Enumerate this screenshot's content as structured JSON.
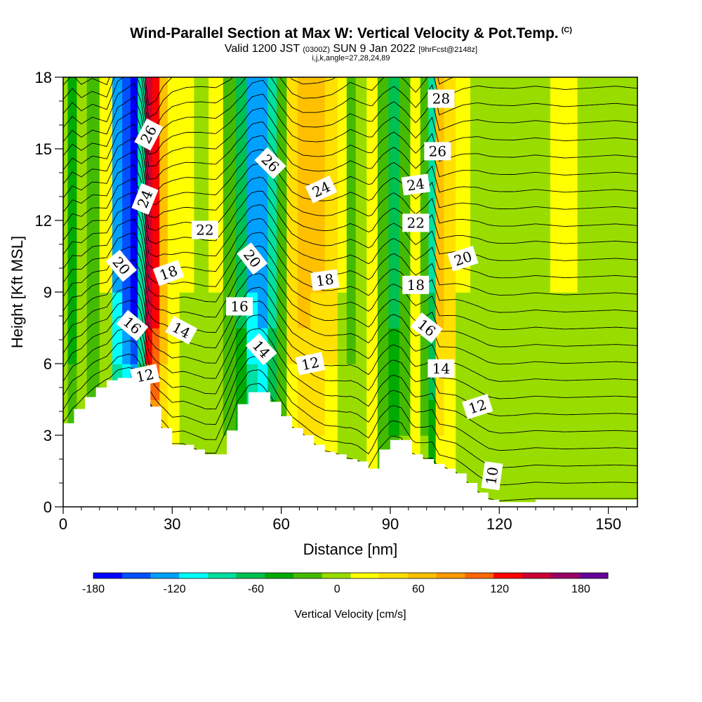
{
  "header": {
    "title": "Wind-Parallel Section at Max W: Vertical Velocity & Pot.Temp.",
    "copyright": "(C)",
    "valid_a": "Valid 1200 JST",
    "valid_b": "(0300Z)",
    "valid_c": "SUN 9 Jan 2022",
    "valid_d": "[9hrFcst@2148z]",
    "indices": "i,j,k,angle=27,28,24,89"
  },
  "chart_data": {
    "type": "heatmap",
    "xlabel": "Distance [nm]",
    "ylabel": "Height [Kft MSL]",
    "xlim": [
      0,
      158
    ],
    "ylim": [
      0,
      18
    ],
    "x_ticks": [
      0,
      30,
      60,
      90,
      120,
      150
    ],
    "y_ticks": [
      0,
      3,
      6,
      9,
      12,
      15,
      18
    ],
    "colorbar": {
      "label": "Vertical Velocity [cm/s]",
      "range": [
        -180,
        200
      ],
      "tick_values": [
        -180,
        -120,
        -60,
        0,
        60,
        120,
        180
      ],
      "tick_labels": [
        "-180",
        "-120",
        "-60",
        "0",
        "60",
        "120",
        "180"
      ],
      "colors": [
        "#0000ff",
        "#0050ff",
        "#00a0ff",
        "#00ffff",
        "#00e0a0",
        "#00c050",
        "#00aa00",
        "#44bb00",
        "#99dd00",
        "#ffff00",
        "#ffe000",
        "#ffc000",
        "#ff9900",
        "#ff6600",
        "#ff0000",
        "#cc0033",
        "#990066",
        "#660099"
      ]
    },
    "w_columns": [
      {
        "x": 0,
        "w": 5
      },
      {
        "x": 2.5,
        "w": -40
      },
      {
        "x": 5,
        "w": 5
      },
      {
        "x": 8,
        "w": -20
      },
      {
        "x": 12,
        "w": 10
      },
      {
        "x": 15,
        "w": -120
      },
      {
        "x": 17.5,
        "w": -150
      },
      {
        "x": 19.5,
        "w": -175
      },
      {
        "x": 21.5,
        "w": -90
      },
      {
        "x": 23.5,
        "w": 150
      },
      {
        "x": 25.5,
        "w": 130
      },
      {
        "x": 27.5,
        "w": 70
      },
      {
        "x": 30,
        "w": 30
      },
      {
        "x": 34,
        "w": 10
      },
      {
        "x": 38,
        "w": 5
      },
      {
        "x": 42,
        "w": 10
      },
      {
        "x": 46,
        "w": -20
      },
      {
        "x": 49,
        "w": -60
      },
      {
        "x": 52,
        "w": -120
      },
      {
        "x": 55,
        "w": -135
      },
      {
        "x": 57.5,
        "w": -80
      },
      {
        "x": 60,
        "w": -20
      },
      {
        "x": 63,
        "w": 40
      },
      {
        "x": 66,
        "w": 60
      },
      {
        "x": 70,
        "w": 55
      },
      {
        "x": 74,
        "w": 40
      },
      {
        "x": 77,
        "w": 10
      },
      {
        "x": 79,
        "w": -15
      },
      {
        "x": 82,
        "w": 5
      },
      {
        "x": 85,
        "w": 20
      },
      {
        "x": 88,
        "w": -30
      },
      {
        "x": 91,
        "w": -60
      },
      {
        "x": 94,
        "w": -20
      },
      {
        "x": 97,
        "w": 30
      },
      {
        "x": 99.5,
        "w": -20
      },
      {
        "x": 101.5,
        "w": -75
      },
      {
        "x": 103.5,
        "w": 60
      },
      {
        "x": 106,
        "w": 40
      },
      {
        "x": 110,
        "w": 10
      },
      {
        "x": 114,
        "w": -5
      },
      {
        "x": 118,
        "w": 2
      },
      {
        "x": 124,
        "w": 5
      },
      {
        "x": 130,
        "w": -5
      },
      {
        "x": 138,
        "w": 10
      },
      {
        "x": 145,
        "w": 3
      },
      {
        "x": 152,
        "w": -5
      },
      {
        "x": 158,
        "w": 5
      }
    ],
    "terrain": [
      [
        0,
        3.5
      ],
      [
        3,
        4.1
      ],
      [
        6,
        4.6
      ],
      [
        9,
        5.0
      ],
      [
        12,
        5.3
      ],
      [
        15,
        5.4
      ],
      [
        18,
        5.4
      ],
      [
        21,
        5.2
      ],
      [
        24,
        4.2
      ],
      [
        27,
        3.3
      ],
      [
        30,
        2.6
      ],
      [
        33,
        2.6
      ],
      [
        36,
        2.4
      ],
      [
        39,
        2.2
      ],
      [
        42,
        2.2
      ],
      [
        45,
        3.2
      ],
      [
        48,
        4.3
      ],
      [
        51,
        4.8
      ],
      [
        54,
        4.8
      ],
      [
        57,
        4.4
      ],
      [
        60,
        3.8
      ],
      [
        63,
        3.3
      ],
      [
        66,
        3.0
      ],
      [
        69,
        2.6
      ],
      [
        72,
        2.3
      ],
      [
        75,
        2.2
      ],
      [
        78,
        2.0
      ],
      [
        81,
        1.9
      ],
      [
        84,
        1.6
      ],
      [
        87,
        2.4
      ],
      [
        90,
        2.8
      ],
      [
        93,
        2.8
      ],
      [
        96,
        2.2
      ],
      [
        99,
        2.0
      ],
      [
        102,
        1.8
      ],
      [
        105,
        1.6
      ],
      [
        108,
        1.4
      ],
      [
        111,
        1.0
      ],
      [
        114,
        0.6
      ],
      [
        117,
        0.3
      ],
      [
        120,
        0.2
      ],
      [
        130,
        0.3
      ],
      [
        140,
        0.3
      ],
      [
        150,
        0.3
      ],
      [
        158,
        0.3
      ]
    ],
    "contour_labels": [
      {
        "text": "26",
        "x": 23.5,
        "y": 15.6,
        "angle": -62
      },
      {
        "text": "24",
        "x": 22.5,
        "y": 12.9,
        "angle": -68
      },
      {
        "text": "20",
        "x": 16,
        "y": 10.1,
        "angle": 50
      },
      {
        "text": "18",
        "x": 29,
        "y": 9.8,
        "angle": -20
      },
      {
        "text": "16",
        "x": 19,
        "y": 7.6,
        "angle": 40
      },
      {
        "text": "14",
        "x": 32.5,
        "y": 7.4,
        "angle": 28
      },
      {
        "text": "12",
        "x": 22.5,
        "y": 5.5,
        "angle": -12
      },
      {
        "text": "22",
        "x": 39,
        "y": 11.6,
        "angle": 0
      },
      {
        "text": "26",
        "x": 57,
        "y": 14.4,
        "angle": 45
      },
      {
        "text": "20",
        "x": 52,
        "y": 10.4,
        "angle": 52
      },
      {
        "text": "16",
        "x": 48.5,
        "y": 8.4,
        "angle": 0
      },
      {
        "text": "14",
        "x": 54.5,
        "y": 6.6,
        "angle": 48
      },
      {
        "text": "24",
        "x": 71,
        "y": 13.3,
        "angle": -25
      },
      {
        "text": "18",
        "x": 72,
        "y": 9.5,
        "angle": -8
      },
      {
        "text": "12",
        "x": 68,
        "y": 6.0,
        "angle": -12
      },
      {
        "text": "28",
        "x": 104,
        "y": 17.1,
        "angle": 0
      },
      {
        "text": "26",
        "x": 103,
        "y": 14.9,
        "angle": 0
      },
      {
        "text": "24",
        "x": 97,
        "y": 13.5,
        "angle": -8
      },
      {
        "text": "22",
        "x": 97,
        "y": 11.9,
        "angle": 0
      },
      {
        "text": "18",
        "x": 97,
        "y": 9.3,
        "angle": 0
      },
      {
        "text": "16",
        "x": 100,
        "y": 7.5,
        "angle": 38
      },
      {
        "text": "14",
        "x": 104,
        "y": 5.8,
        "angle": 0
      },
      {
        "text": "20",
        "x": 110,
        "y": 10.4,
        "angle": -18
      },
      {
        "text": "12",
        "x": 114,
        "y": 4.2,
        "angle": -18
      },
      {
        "text": "10",
        "x": 118,
        "y": 1.3,
        "angle": -82
      }
    ],
    "contour_levels": [
      4,
      5,
      6,
      7,
      8,
      9,
      10,
      11,
      12,
      13,
      14,
      15,
      16,
      17,
      18,
      19,
      20,
      21,
      22,
      23,
      24,
      25,
      26,
      27,
      28,
      29
    ]
  }
}
